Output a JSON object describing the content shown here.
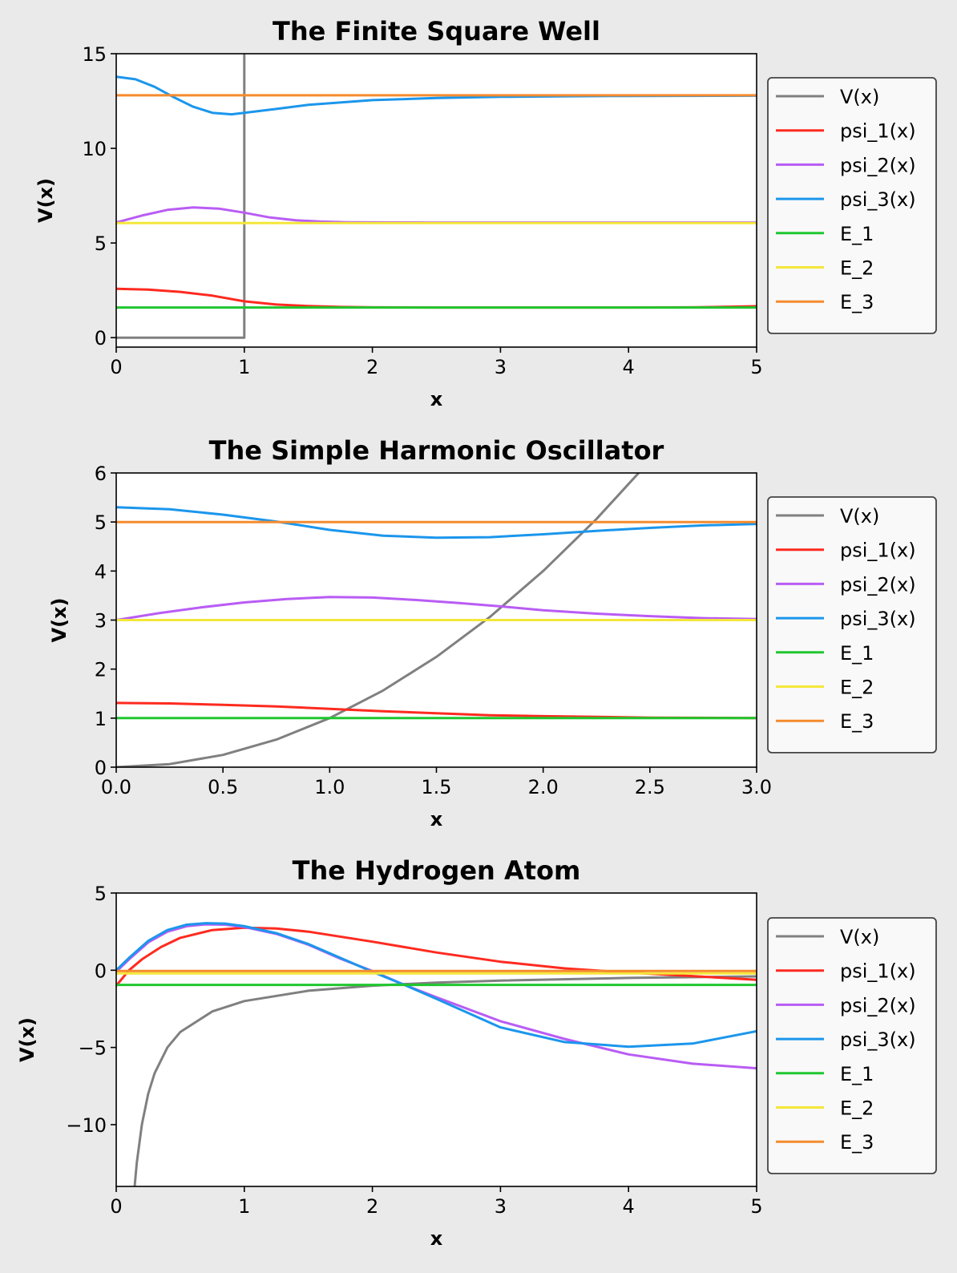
{
  "chart_data": [
    {
      "type": "line",
      "title": "The Finite Square Well",
      "xlabel": "x",
      "ylabel": "V(x)",
      "xlim": [
        0,
        5
      ],
      "ylim": [
        -0.5,
        15
      ],
      "xticks": [
        0,
        1,
        2,
        3,
        4,
        5
      ],
      "xtick_labels": [
        "0",
        "1",
        "2",
        "3",
        "4",
        "5"
      ],
      "yticks": [
        0,
        5,
        10,
        15
      ],
      "ytick_labels": [
        "0",
        "5",
        "10",
        "15"
      ],
      "grid": false,
      "legend_position": "outside-right",
      "series": [
        {
          "name": "V(x)",
          "color": "#808080",
          "x": [
            0,
            0.99,
            0.99,
            1.0,
            1.0
          ],
          "y": [
            0,
            0,
            0,
            0,
            15.5
          ]
        },
        {
          "name": "psi_1(x)",
          "color": "#ff2a1f",
          "x": [
            0,
            0.25,
            0.5,
            0.75,
            1.0,
            1.25,
            1.5,
            1.75,
            2.0,
            2.5,
            3.0,
            3.5,
            4.0,
            4.5,
            5.0
          ],
          "y": [
            2.58,
            2.54,
            2.42,
            2.22,
            1.92,
            1.75,
            1.67,
            1.62,
            1.6,
            1.59,
            1.59,
            1.59,
            1.59,
            1.6,
            1.66
          ]
        },
        {
          "name": "psi_2(x)",
          "color": "#b95cf4",
          "x": [
            0,
            0.2,
            0.4,
            0.6,
            0.8,
            1.0,
            1.2,
            1.4,
            1.6,
            1.8,
            2.0,
            2.5,
            3.0,
            4.0,
            5.0
          ],
          "y": [
            6.08,
            6.45,
            6.75,
            6.88,
            6.82,
            6.6,
            6.35,
            6.2,
            6.13,
            6.1,
            6.09,
            6.08,
            6.08,
            6.08,
            6.08
          ]
        },
        {
          "name": "psi_3(x)",
          "color": "#1b96ec",
          "x": [
            0,
            0.15,
            0.3,
            0.45,
            0.6,
            0.75,
            0.9,
            1.0,
            1.25,
            1.5,
            2.0,
            2.5,
            3.0,
            3.5,
            4.0,
            5.0
          ],
          "y": [
            13.78,
            13.65,
            13.25,
            12.7,
            12.2,
            11.88,
            11.8,
            11.88,
            12.08,
            12.3,
            12.55,
            12.66,
            12.72,
            12.75,
            12.77,
            12.78
          ]
        },
        {
          "name": "E_1",
          "color": "#1fc72f",
          "x": [
            0,
            5
          ],
          "y": [
            1.59,
            1.59
          ]
        },
        {
          "name": "E_2",
          "color": "#f4e73a",
          "x": [
            0,
            5
          ],
          "y": [
            6.05,
            6.05
          ]
        },
        {
          "name": "E_3",
          "color": "#f58b2e",
          "x": [
            0,
            5
          ],
          "y": [
            12.8,
            12.8
          ]
        }
      ]
    },
    {
      "type": "line",
      "title": "The Simple Harmonic Oscillator",
      "xlabel": "x",
      "ylabel": "V(x)",
      "xlim": [
        0,
        3
      ],
      "ylim": [
        0,
        6
      ],
      "xticks": [
        0,
        0.5,
        1.0,
        1.5,
        2.0,
        2.5,
        3.0
      ],
      "xtick_labels": [
        "0.0",
        "0.5",
        "1.0",
        "1.5",
        "2.0",
        "2.5",
        "3.0"
      ],
      "yticks": [
        0,
        1,
        2,
        3,
        4,
        5,
        6
      ],
      "ytick_labels": [
        "0",
        "1",
        "2",
        "3",
        "4",
        "5",
        "6"
      ],
      "grid": false,
      "legend_position": "outside-right",
      "series": [
        {
          "name": "V(x)",
          "color": "#808080",
          "x": [
            0,
            0.25,
            0.5,
            0.75,
            1.0,
            1.25,
            1.5,
            1.75,
            2.0,
            2.25,
            2.5,
            2.62
          ],
          "y": [
            0,
            0.0625,
            0.25,
            0.5625,
            1.0,
            1.5625,
            2.25,
            3.0625,
            4.0,
            5.0625,
            6.25,
            6.86
          ]
        },
        {
          "name": "psi_1(x)",
          "color": "#ff2a1f",
          "x": [
            0,
            0.25,
            0.5,
            0.75,
            1.0,
            1.25,
            1.5,
            1.75,
            2.0,
            2.5,
            3.0
          ],
          "y": [
            1.31,
            1.3,
            1.27,
            1.24,
            1.19,
            1.14,
            1.1,
            1.06,
            1.04,
            1.01,
            1.0
          ]
        },
        {
          "name": "psi_2(x)",
          "color": "#b95cf4",
          "x": [
            0,
            0.2,
            0.4,
            0.6,
            0.8,
            1.0,
            1.2,
            1.4,
            1.6,
            1.8,
            2.0,
            2.25,
            2.5,
            2.75,
            3.0
          ],
          "y": [
            3.0,
            3.14,
            3.26,
            3.36,
            3.43,
            3.47,
            3.46,
            3.41,
            3.35,
            3.28,
            3.2,
            3.13,
            3.08,
            3.04,
            3.02
          ]
        },
        {
          "name": "psi_3(x)",
          "color": "#1b96ec",
          "x": [
            0,
            0.25,
            0.5,
            0.75,
            1.0,
            1.25,
            1.5,
            1.75,
            2.0,
            2.25,
            2.5,
            2.75,
            3.0
          ],
          "y": [
            5.3,
            5.26,
            5.15,
            5.01,
            4.84,
            4.72,
            4.68,
            4.69,
            4.75,
            4.82,
            4.88,
            4.93,
            4.96
          ]
        },
        {
          "name": "E_1",
          "color": "#1fc72f",
          "x": [
            0,
            3
          ],
          "y": [
            1.0,
            1.0
          ]
        },
        {
          "name": "E_2",
          "color": "#f4e73a",
          "x": [
            0,
            3
          ],
          "y": [
            3.0,
            3.0
          ]
        },
        {
          "name": "E_3",
          "color": "#f58b2e",
          "x": [
            0,
            3
          ],
          "y": [
            5.0,
            5.0
          ]
        }
      ]
    },
    {
      "type": "line",
      "title": "The Hydrogen Atom",
      "xlabel": "x",
      "ylabel": "V(x)",
      "xlim": [
        0,
        5
      ],
      "ylim": [
        -14,
        5
      ],
      "xticks": [
        0,
        1,
        2,
        3,
        4,
        5
      ],
      "xtick_labels": [
        "0",
        "1",
        "2",
        "3",
        "4",
        "5"
      ],
      "yticks": [
        -10,
        -5,
        0,
        5
      ],
      "ytick_labels": [
        "−10",
        "−5",
        "0",
        "5"
      ],
      "grid": false,
      "legend_position": "outside-right",
      "series": [
        {
          "name": "V(x)",
          "color": "#808080",
          "x": [
            0.135,
            0.16,
            0.2,
            0.25,
            0.3,
            0.4,
            0.5,
            0.75,
            1.0,
            1.5,
            2.0,
            2.5,
            3.0,
            4.0,
            5.0
          ],
          "y": [
            -14.8,
            -12.5,
            -10.0,
            -8.0,
            -6.67,
            -5.0,
            -4.0,
            -2.67,
            -2.0,
            -1.33,
            -1.0,
            -0.8,
            -0.67,
            -0.5,
            -0.4
          ]
        },
        {
          "name": "psi_1(x)",
          "color": "#ff2a1f",
          "x": [
            0,
            0.1,
            0.2,
            0.35,
            0.5,
            0.75,
            1.0,
            1.25,
            1.5,
            2.0,
            2.5,
            3.0,
            3.5,
            4.0,
            4.5,
            5.0
          ],
          "y": [
            -1.0,
            0.0,
            0.7,
            1.5,
            2.1,
            2.6,
            2.75,
            2.7,
            2.5,
            1.85,
            1.15,
            0.55,
            0.12,
            -0.15,
            -0.38,
            -0.62
          ]
        },
        {
          "name": "psi_2(x)",
          "color": "#b95cf4",
          "x": [
            0,
            0.1,
            0.25,
            0.4,
            0.55,
            0.7,
            0.85,
            1.0,
            1.25,
            1.5,
            1.75,
            2.0,
            2.25,
            2.5,
            3.0,
            3.5,
            4.0,
            4.5,
            5.0
          ],
          "y": [
            -0.1,
            0.7,
            1.8,
            2.5,
            2.85,
            2.97,
            2.95,
            2.8,
            2.35,
            1.65,
            0.75,
            -0.05,
            -0.95,
            -1.75,
            -3.3,
            -4.45,
            -5.45,
            -6.05,
            -6.35
          ]
        },
        {
          "name": "psi_3(x)",
          "color": "#1b96ec",
          "x": [
            0,
            0.1,
            0.25,
            0.4,
            0.55,
            0.7,
            0.85,
            1.0,
            1.25,
            1.5,
            1.75,
            2.0,
            2.25,
            2.5,
            3.0,
            3.5,
            4.0,
            4.5,
            5.0
          ],
          "y": [
            0.0,
            0.8,
            1.9,
            2.6,
            2.95,
            3.05,
            3.02,
            2.85,
            2.4,
            1.7,
            0.8,
            -0.1,
            -0.95,
            -1.85,
            -3.7,
            -4.65,
            -4.95,
            -4.75,
            -3.95
          ]
        },
        {
          "name": "E_1",
          "color": "#1fc72f",
          "x": [
            0,
            5
          ],
          "y": [
            -0.95,
            -0.95
          ]
        },
        {
          "name": "E_2",
          "color": "#f4e73a",
          "x": [
            0,
            5
          ],
          "y": [
            -0.2,
            -0.2
          ]
        },
        {
          "name": "E_3",
          "color": "#f58b2e",
          "x": [
            0,
            5
          ],
          "y": [
            -0.05,
            -0.05
          ]
        }
      ]
    }
  ]
}
